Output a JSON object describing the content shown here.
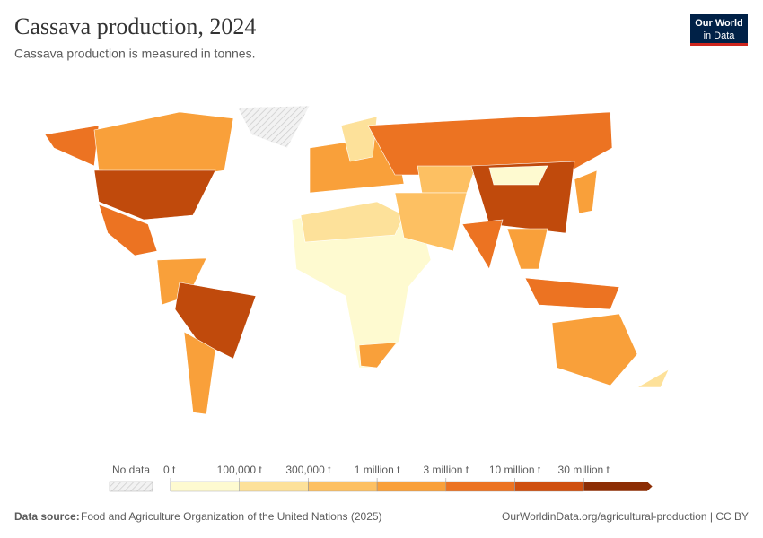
{
  "header": {
    "title": "Cassava production, 2024",
    "subtitle": "Cassava production is measured in tonnes.",
    "logo": [
      "Our World",
      "in Data"
    ]
  },
  "legend": {
    "no_data": "No data",
    "ticks": [
      {
        "value": 0,
        "label": "0 t"
      },
      {
        "value": 100000,
        "label": "100,000 t"
      },
      {
        "value": 300000,
        "label": "300,000 t"
      },
      {
        "value": 1000000,
        "label": "1 million t"
      },
      {
        "value": 3000000,
        "label": "3 million t"
      },
      {
        "value": 10000000,
        "label": "10 million t"
      },
      {
        "value": 30000000,
        "label": "30 million t"
      }
    ],
    "colors": [
      "#fefad0",
      "#fde19a",
      "#fdc062",
      "#f9a03a",
      "#ec7322",
      "#cf4f0f",
      "#8c2d04"
    ]
  },
  "footer": {
    "source_label": "Data source:",
    "source": "Food and Agriculture Organization of the United Nations (2025)",
    "url": "OurWorldinData.org/agricultural-production | CC BY"
  }
}
